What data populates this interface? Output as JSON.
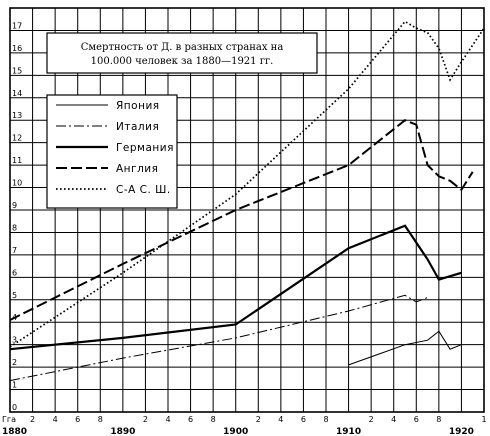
{
  "chart_data": {
    "type": "line",
    "title_lines": [
      "Смертность от Д. в разных странах на",
      "100.000 человек за 1880—1921 гг."
    ],
    "xlabel": "",
    "ylabel": "",
    "xlim": [
      1880,
      1922
    ],
    "ylim": [
      0,
      18
    ],
    "y_ticks": [
      0,
      1,
      2,
      3,
      4,
      5,
      6,
      7,
      8,
      9,
      10,
      11,
      12,
      13,
      14,
      15,
      16,
      17
    ],
    "x_corner_label": "Гга",
    "x_minor_ticks": [
      {
        "x": 1882,
        "label": "2"
      },
      {
        "x": 1884,
        "label": "4"
      },
      {
        "x": 1886,
        "label": "6"
      },
      {
        "x": 1888,
        "label": "8"
      },
      {
        "x": 1892,
        "label": "2"
      },
      {
        "x": 1894,
        "label": "4"
      },
      {
        "x": 1896,
        "label": "6"
      },
      {
        "x": 1898,
        "label": "8"
      },
      {
        "x": 1902,
        "label": "2"
      },
      {
        "x": 1904,
        "label": "4"
      },
      {
        "x": 1906,
        "label": "6"
      },
      {
        "x": 1908,
        "label": "8"
      },
      {
        "x": 1912,
        "label": "2"
      },
      {
        "x": 1914,
        "label": "4"
      },
      {
        "x": 1916,
        "label": "6"
      },
      {
        "x": 1918,
        "label": "8"
      },
      {
        "x": 1922,
        "label": "1"
      }
    ],
    "x_major_ticks": [
      {
        "x": 1880,
        "label": "1880"
      },
      {
        "x": 1890,
        "label": "1890"
      },
      {
        "x": 1900,
        "label": "1900"
      },
      {
        "x": 1910,
        "label": "1910"
      },
      {
        "x": 1920,
        "label": "1920"
      }
    ],
    "legend_position": "top-left",
    "grid": true,
    "series": [
      {
        "name": "Япония",
        "style": "solid-thin",
        "points": [
          [
            1910,
            2.1
          ],
          [
            1915,
            3.0
          ],
          [
            1917,
            3.2
          ],
          [
            1918,
            3.6
          ],
          [
            1919,
            2.8
          ],
          [
            1920,
            3.0
          ]
        ]
      },
      {
        "name": "Италия",
        "style": "dashdot-thin",
        "points": [
          [
            1880,
            1.4
          ],
          [
            1890,
            2.4
          ],
          [
            1900,
            3.3
          ],
          [
            1910,
            4.5
          ],
          [
            1915,
            5.2
          ],
          [
            1916,
            4.9
          ],
          [
            1917,
            5.1
          ]
        ]
      },
      {
        "name": "Германия",
        "style": "solid-thick",
        "points": [
          [
            1880,
            2.8
          ],
          [
            1890,
            3.3
          ],
          [
            1900,
            3.9
          ],
          [
            1910,
            7.3
          ],
          [
            1915,
            8.3
          ],
          [
            1917,
            6.8
          ],
          [
            1918,
            5.9
          ],
          [
            1920,
            6.2
          ]
        ]
      },
      {
        "name": "Англия",
        "style": "dash-long",
        "points": [
          [
            1880,
            4.1
          ],
          [
            1890,
            6.6
          ],
          [
            1900,
            9.0
          ],
          [
            1910,
            11.0
          ],
          [
            1915,
            13.0
          ],
          [
            1916,
            12.8
          ],
          [
            1917,
            11.0
          ],
          [
            1918,
            10.5
          ],
          [
            1919,
            10.3
          ],
          [
            1920,
            9.9
          ],
          [
            1921,
            10.7
          ]
        ]
      },
      {
        "name": "С-А С. Ш.",
        "style": "dotted",
        "points": [
          [
            1880,
            2.9
          ],
          [
            1890,
            6.2
          ],
          [
            1900,
            9.7
          ],
          [
            1910,
            14.4
          ],
          [
            1915,
            17.4
          ],
          [
            1916,
            17.1
          ],
          [
            1917,
            16.9
          ],
          [
            1918,
            16.2
          ],
          [
            1919,
            14.8
          ],
          [
            1920,
            15.6
          ],
          [
            1922,
            17.1
          ]
        ]
      }
    ]
  }
}
